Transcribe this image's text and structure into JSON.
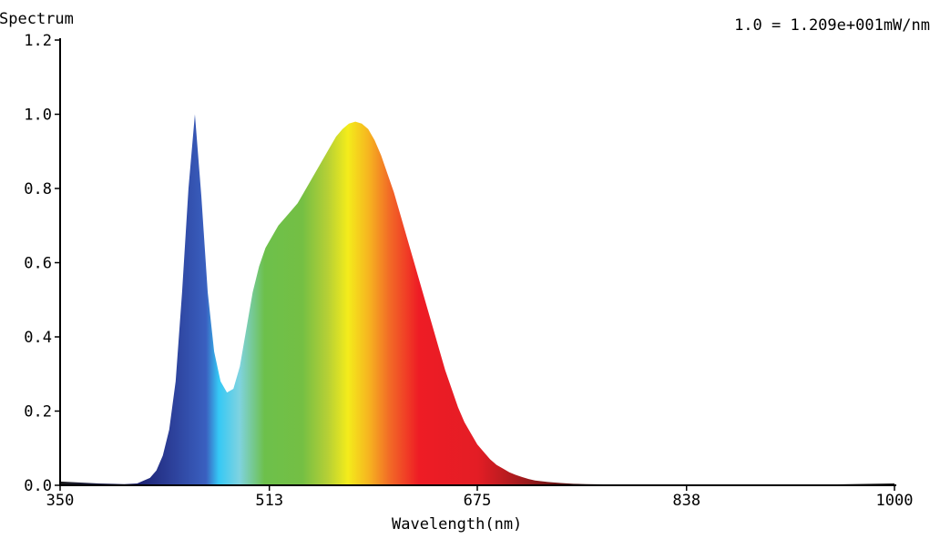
{
  "chart_data": {
    "type": "area",
    "title": "Spectrum",
    "scale_note": "1.0 = 1.209e+001mW/nm",
    "xlabel": "Wavelength(nm)",
    "ylabel": "",
    "xlim": [
      350,
      1000
    ],
    "ylim": [
      0,
      1.2
    ],
    "xticks": [
      "350",
      "513",
      "675",
      "838",
      "1000"
    ],
    "xtick_values": [
      350,
      513,
      675,
      838,
      1000
    ],
    "yticks": [
      "0.0",
      "0.2",
      "0.4",
      "0.6",
      "0.8",
      "1.0",
      "1.2"
    ],
    "ytick_values": [
      0.0,
      0.2,
      0.4,
      0.6,
      0.8,
      1.0,
      1.2
    ],
    "grid": false,
    "legend": "none",
    "fill": "visible-spectrum gradient",
    "series": [
      {
        "x": [
          350,
          380,
          400,
          410,
          420,
          425,
          430,
          435,
          440,
          445,
          450,
          455,
          460,
          465,
          470,
          475,
          480,
          485,
          490,
          495,
          500,
          505,
          510,
          515,
          520,
          525,
          530,
          535,
          540,
          545,
          550,
          555,
          560,
          565,
          570,
          575,
          580,
          585,
          590,
          595,
          600,
          605,
          610,
          615,
          620,
          625,
          630,
          635,
          640,
          645,
          650,
          655,
          660,
          665,
          670,
          675,
          680,
          685,
          690,
          695,
          700,
          705,
          710,
          715,
          720,
          730,
          740,
          750,
          760,
          780,
          800,
          850,
          900,
          950,
          1000
        ],
        "values": [
          0.01,
          0.005,
          0.003,
          0.005,
          0.02,
          0.04,
          0.08,
          0.15,
          0.28,
          0.52,
          0.8,
          1.0,
          0.78,
          0.52,
          0.36,
          0.28,
          0.25,
          0.26,
          0.32,
          0.42,
          0.52,
          0.59,
          0.64,
          0.67,
          0.7,
          0.72,
          0.74,
          0.76,
          0.79,
          0.82,
          0.85,
          0.88,
          0.91,
          0.94,
          0.96,
          0.975,
          0.98,
          0.975,
          0.96,
          0.93,
          0.89,
          0.84,
          0.79,
          0.73,
          0.67,
          0.61,
          0.55,
          0.49,
          0.43,
          0.37,
          0.31,
          0.26,
          0.21,
          0.17,
          0.14,
          0.11,
          0.09,
          0.07,
          0.055,
          0.045,
          0.035,
          0.028,
          0.022,
          0.017,
          0.013,
          0.009,
          0.006,
          0.004,
          0.003,
          0.002,
          0.002,
          0.002,
          0.002,
          0.002,
          0.005
        ]
      }
    ]
  }
}
